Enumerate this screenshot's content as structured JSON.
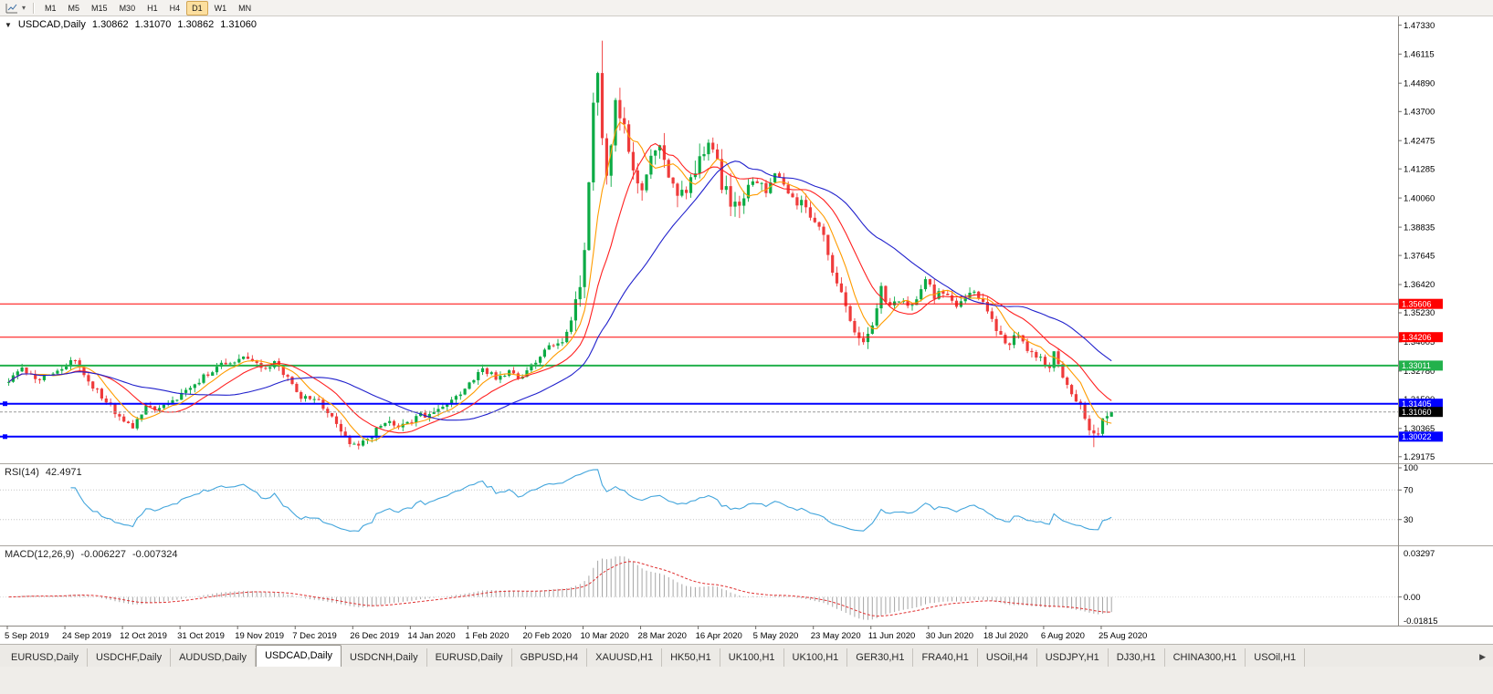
{
  "toolbar": {
    "dropdown_icon": "▾",
    "timeframes": [
      "M1",
      "M5",
      "M15",
      "M30",
      "H1",
      "H4",
      "D1",
      "W1",
      "MN"
    ],
    "active_timeframe": "D1"
  },
  "header": {
    "collapse_arrow": "▼",
    "symbol": "USDCAD,Daily",
    "open": "1.30862",
    "high": "1.31070",
    "low": "1.30862",
    "close": "1.31060"
  },
  "chart_data": {
    "type": "candlestick",
    "symbol": "USDCAD",
    "timeframe": "Daily",
    "candles_count": 250,
    "price_range": {
      "top": 1.477,
      "bottom": 1.289
    },
    "spike_high": 1.4668,
    "recent_low": 1.2958,
    "last_candle": {
      "open": 1.30862,
      "high": 1.3107,
      "low": 1.30862,
      "close": 1.3106
    },
    "waypoints": [
      [
        0,
        1.323
      ],
      [
        4,
        1.3285
      ],
      [
        8,
        1.324
      ],
      [
        12,
        1.328
      ],
      [
        16,
        1.3325
      ],
      [
        19,
        1.324
      ],
      [
        23,
        1.315
      ],
      [
        27,
        1.306
      ],
      [
        29,
        1.3045
      ],
      [
        32,
        1.314
      ],
      [
        35,
        1.311
      ],
      [
        38,
        1.315
      ],
      [
        42,
        1.321
      ],
      [
        46,
        1.327
      ],
      [
        50,
        1.331
      ],
      [
        55,
        1.333
      ],
      [
        58,
        1.329
      ],
      [
        61,
        1.331
      ],
      [
        64,
        1.325
      ],
      [
        67,
        1.317
      ],
      [
        71,
        1.315
      ],
      [
        74,
        1.308
      ],
      [
        77,
        1.299
      ],
      [
        80,
        1.296
      ],
      [
        83,
        1.301
      ],
      [
        86,
        1.306
      ],
      [
        90,
        1.305
      ],
      [
        94,
        1.309
      ],
      [
        98,
        1.311
      ],
      [
        102,
        1.316
      ],
      [
        105,
        1.323
      ],
      [
        108,
        1.329
      ],
      [
        111,
        1.325
      ],
      [
        114,
        1.327
      ],
      [
        117,
        1.3245
      ],
      [
        120,
        1.332
      ],
      [
        123,
        1.339
      ],
      [
        126,
        1.34
      ],
      [
        128,
        1.347
      ],
      [
        130,
        1.364
      ],
      [
        131,
        1.376
      ],
      [
        132,
        1.406
      ],
      [
        133,
        1.443
      ],
      [
        134,
        1.45
      ],
      [
        135,
        1.428
      ],
      [
        136,
        1.41
      ],
      [
        137,
        1.425
      ],
      [
        138,
        1.44
      ],
      [
        140,
        1.428
      ],
      [
        142,
        1.412
      ],
      [
        144,
        1.402
      ],
      [
        146,
        1.415
      ],
      [
        148,
        1.423
      ],
      [
        150,
        1.408
      ],
      [
        152,
        1.399
      ],
      [
        154,
        1.404
      ],
      [
        156,
        1.411
      ],
      [
        158,
        1.418
      ],
      [
        160,
        1.424
      ],
      [
        162,
        1.406
      ],
      [
        164,
        1.398
      ],
      [
        166,
        1.395
      ],
      [
        168,
        1.403
      ],
      [
        170,
        1.409
      ],
      [
        172,
        1.403
      ],
      [
        174,
        1.411
      ],
      [
        176,
        1.406
      ],
      [
        178,
        1.399
      ],
      [
        181,
        1.397
      ],
      [
        184,
        1.389
      ],
      [
        186,
        1.377
      ],
      [
        188,
        1.365
      ],
      [
        190,
        1.354
      ],
      [
        192,
        1.343
      ],
      [
        194,
        1.339
      ],
      [
        196,
        1.349
      ],
      [
        198,
        1.362
      ],
      [
        200,
        1.354
      ],
      [
        202,
        1.358
      ],
      [
        205,
        1.3555
      ],
      [
        208,
        1.367
      ],
      [
        210,
        1.359
      ],
      [
        212,
        1.3615
      ],
      [
        215,
        1.356
      ],
      [
        218,
        1.362
      ],
      [
        221,
        1.3575
      ],
      [
        223,
        1.3505
      ],
      [
        225,
        1.342
      ],
      [
        227,
        1.339
      ],
      [
        229,
        1.3435
      ],
      [
        231,
        1.335
      ],
      [
        234,
        1.333
      ],
      [
        236,
        1.329
      ],
      [
        237,
        1.335
      ],
      [
        239,
        1.3255
      ],
      [
        241,
        1.319
      ],
      [
        243,
        1.313
      ],
      [
        245,
        1.304
      ],
      [
        246,
        1.2995
      ],
      [
        248,
        1.307
      ],
      [
        250,
        1.3106
      ]
    ],
    "volatility_zones": [
      [
        0,
        127,
        0.003
      ],
      [
        127,
        168,
        0.0085
      ],
      [
        168,
        196,
        0.0048
      ],
      [
        196,
        244,
        0.0036
      ],
      [
        244,
        250,
        0.0045
      ]
    ],
    "colors": {
      "up": "#0cab45",
      "down": "#ef3b3b",
      "background": "#ffffff"
    },
    "moving_averages": [
      {
        "name": "ma-fast-orange",
        "period": 7,
        "color": "#ff9c00"
      },
      {
        "name": "ma-medium-red",
        "period": 15,
        "color": "#ff2020"
      },
      {
        "name": "ma-slow-blue",
        "period": 34,
        "color": "#2020cc"
      }
    ],
    "horizontal_lines": [
      {
        "price": 1.35606,
        "label": "1.35606",
        "color": "#ff0000",
        "width": 1
      },
      {
        "price": 1.34206,
        "label": "1.34206",
        "color": "#ff0000",
        "width": 1
      },
      {
        "price": 1.33011,
        "label": "1.33011",
        "color": "#22b14c",
        "width": 2
      },
      {
        "price": 1.31405,
        "label": "1.31405",
        "color": "#0000ff",
        "width": 2,
        "handle": true
      },
      {
        "price": 1.30022,
        "label": "1.30022",
        "color": "#0000ff",
        "width": 2,
        "handle": true
      }
    ],
    "current_price": {
      "value": 1.3106,
      "label": "1.31060",
      "badge_color": "#000000"
    },
    "price_axis_ticks": [
      "1.47330",
      "1.46115",
      "1.44890",
      "1.43700",
      "1.42475",
      "1.41285",
      "1.40060",
      "1.38835",
      "1.37645",
      "1.36420",
      "1.35230",
      "1.34005",
      "1.32780",
      "1.31590",
      "1.30365",
      "1.29175"
    ],
    "date_axis": {
      "labels": [
        "5 Sep 2019",
        "24 Sep 2019",
        "12 Oct 2019",
        "31 Oct 2019",
        "19 Nov 2019",
        "7 Dec 2019",
        "26 Dec 2019",
        "14 Jan 2020",
        "1 Feb 2020",
        "20 Feb 2020",
        "10 Mar 2020",
        "28 Mar 2020",
        "16 Apr 2020",
        "5 May 2020",
        "23 May 2020",
        "11 Jun 2020",
        "30 Jun 2020",
        "18 Jul 2020",
        "6 Aug 2020",
        "25 Aug 2020"
      ],
      "indices": [
        0,
        13,
        26,
        39,
        52,
        65,
        78,
        91,
        104,
        117,
        130,
        143,
        156,
        169,
        182,
        195,
        208,
        221,
        234,
        247
      ]
    },
    "rsi": {
      "label": "RSI(14)",
      "value": "42.4971",
      "period": 14,
      "color": "#42a5dc",
      "levels": [
        "100",
        "70",
        "30"
      ]
    },
    "macd": {
      "label": "MACD(12,26,9)",
      "value_main": "-0.006227",
      "value_signal": "-0.007324",
      "hist_color": "#a6a6a6",
      "signal_color": "#e03030",
      "axis": [
        "0.03297",
        "0.00",
        "-0.01815"
      ],
      "scale": {
        "max": 0.03297,
        "min": -0.01815
      }
    }
  },
  "tabs": {
    "items": [
      "EURUSD,Daily",
      "USDCHF,Daily",
      "AUDUSD,Daily",
      "USDCAD,Daily",
      "USDCNH,Daily",
      "EURUSD,Daily",
      "GBPUSD,H4",
      "XAUUSD,H1",
      "HK50,H1",
      "UK100,H1",
      "UK100,H1",
      "GER30,H1",
      "FRA40,H1",
      "USOil,H4",
      "USDJPY,H1",
      "DJ30,H1",
      "CHINA300,H1",
      "USOil,H1"
    ],
    "active_index": 3,
    "scroll_right": "▶"
  }
}
